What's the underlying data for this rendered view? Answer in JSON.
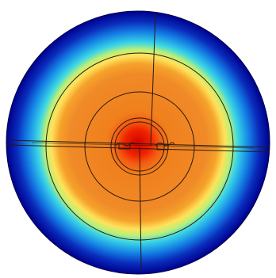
{
  "figure": {
    "kind": "radial field plot on circular cross-section",
    "colormap": "rainbow",
    "colormap_stops": [
      {
        "t": 0.0,
        "color": "#d10000"
      },
      {
        "t": 0.1,
        "color": "#f02400"
      },
      {
        "t": 0.16,
        "color": "#f35b12"
      },
      {
        "t": 0.24,
        "color": "#f0801c"
      },
      {
        "t": 0.52,
        "color": "#f08a28"
      },
      {
        "t": 0.6,
        "color": "#f5a22a"
      },
      {
        "t": 0.66,
        "color": "#ffe25a"
      },
      {
        "t": 0.71,
        "color": "#b9f078"
      },
      {
        "t": 0.76,
        "color": "#3ad6e6"
      },
      {
        "t": 0.84,
        "color": "#1584e6"
      },
      {
        "t": 0.92,
        "color": "#0a2cbc"
      },
      {
        "t": 1.0,
        "color": "#00008c"
      }
    ],
    "mesh_line_color": "#2a1a10",
    "background": "#ffffff"
  }
}
